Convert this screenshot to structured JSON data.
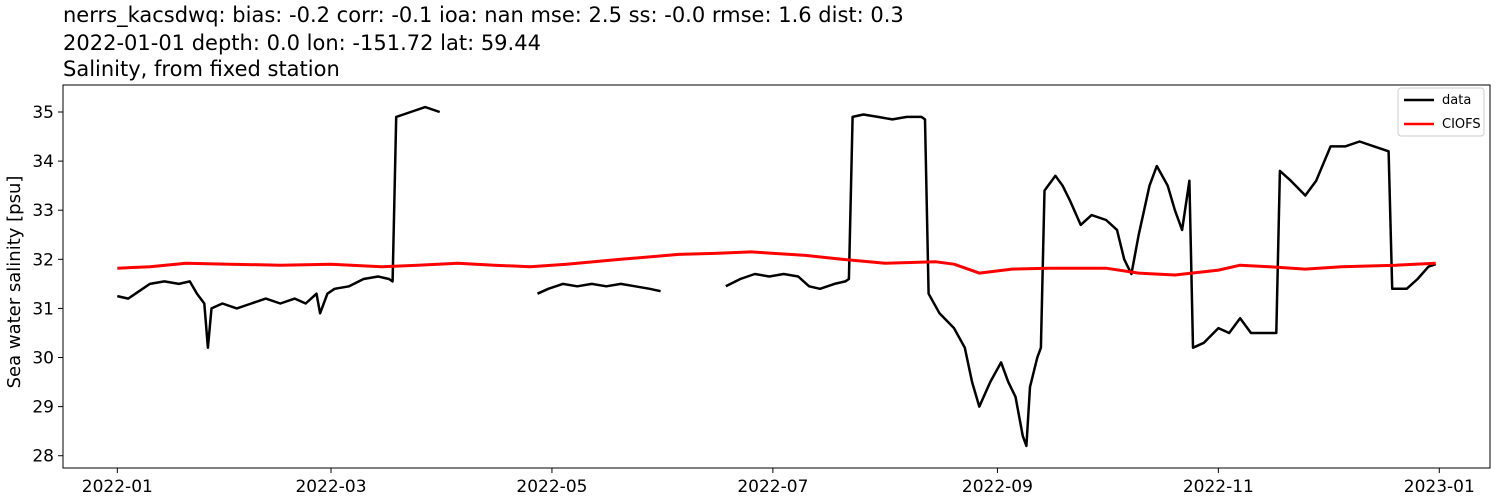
{
  "chart_data": {
    "type": "line",
    "title_lines": [
      "nerrs_kacsdwq: bias: -0.2  corr: -0.1  ioa: nan  mse: 2.5  ss: -0.0  rmse: 1.6  dist: 0.3",
      "2022-01-01 depth: 0.0 lon: -151.72 lat: 59.44",
      "Salinity, from fixed station"
    ],
    "xlabel": "",
    "ylabel": "Sea water salinity [psu]",
    "xlim": [
      "2021-12-17",
      "2023-01-15"
    ],
    "ylim": [
      27.75,
      35.55
    ],
    "x_ticks": [
      "2022-01",
      "2022-03",
      "2022-05",
      "2022-07",
      "2022-09",
      "2022-11",
      "2023-01"
    ],
    "y_ticks": [
      28,
      29,
      30,
      31,
      32,
      33,
      34,
      35
    ],
    "grid": false,
    "legend_position": "top-right",
    "series": [
      {
        "name": "data",
        "color": "#000000",
        "segments": [
          [
            [
              "2022-01-01",
              31.25
            ],
            [
              "2022-01-04",
              31.2
            ],
            [
              "2022-01-07",
              31.35
            ],
            [
              "2022-01-10",
              31.5
            ],
            [
              "2022-01-14",
              31.55
            ],
            [
              "2022-01-18",
              31.5
            ],
            [
              "2022-01-21",
              31.55
            ],
            [
              "2022-01-23",
              31.3
            ],
            [
              "2022-01-25",
              31.1
            ],
            [
              "2022-01-26",
              30.2
            ],
            [
              "2022-01-27",
              31.0
            ],
            [
              "2022-01-30",
              31.1
            ],
            [
              "2022-02-03",
              31.0
            ],
            [
              "2022-02-07",
              31.1
            ],
            [
              "2022-02-11",
              31.2
            ],
            [
              "2022-02-15",
              31.1
            ],
            [
              "2022-02-19",
              31.2
            ],
            [
              "2022-02-22",
              31.1
            ],
            [
              "2022-02-25",
              31.3
            ],
            [
              "2022-02-26",
              30.9
            ],
            [
              "2022-02-28",
              31.3
            ],
            [
              "2022-03-02",
              31.4
            ],
            [
              "2022-03-06",
              31.45
            ],
            [
              "2022-03-10",
              31.6
            ],
            [
              "2022-03-14",
              31.65
            ],
            [
              "2022-03-17",
              31.6
            ],
            [
              "2022-03-18",
              31.55
            ],
            [
              "2022-03-19",
              34.9
            ],
            [
              "2022-03-23",
              35.0
            ],
            [
              "2022-03-27",
              35.1
            ],
            [
              "2022-03-31",
              35.0
            ]
          ],
          [
            [
              "2022-04-27",
              31.3
            ],
            [
              "2022-04-30",
              31.4
            ],
            [
              "2022-05-04",
              31.5
            ],
            [
              "2022-05-08",
              31.45
            ],
            [
              "2022-05-12",
              31.5
            ],
            [
              "2022-05-16",
              31.45
            ],
            [
              "2022-05-20",
              31.5
            ],
            [
              "2022-05-24",
              31.45
            ],
            [
              "2022-05-28",
              31.4
            ],
            [
              "2022-05-31",
              31.35
            ]
          ],
          [
            [
              "2022-06-18",
              31.45
            ],
            [
              "2022-06-22",
              31.6
            ],
            [
              "2022-06-26",
              31.7
            ],
            [
              "2022-06-30",
              31.65
            ],
            [
              "2022-07-04",
              31.7
            ],
            [
              "2022-07-08",
              31.65
            ],
            [
              "2022-07-11",
              31.45
            ],
            [
              "2022-07-14",
              31.4
            ],
            [
              "2022-07-18",
              31.5
            ],
            [
              "2022-07-21",
              31.55
            ],
            [
              "2022-07-22",
              31.6
            ],
            [
              "2022-07-23",
              34.9
            ],
            [
              "2022-07-26",
              34.95
            ],
            [
              "2022-07-30",
              34.9
            ],
            [
              "2022-08-03",
              34.85
            ],
            [
              "2022-08-07",
              34.9
            ],
            [
              "2022-08-11",
              34.9
            ],
            [
              "2022-08-12",
              34.85
            ],
            [
              "2022-08-13",
              31.3
            ],
            [
              "2022-08-16",
              30.9
            ],
            [
              "2022-08-20",
              30.6
            ],
            [
              "2022-08-23",
              30.2
            ],
            [
              "2022-08-25",
              29.5
            ],
            [
              "2022-08-27",
              29.0
            ],
            [
              "2022-08-30",
              29.5
            ],
            [
              "2022-09-02",
              29.9
            ],
            [
              "2022-09-04",
              29.5
            ],
            [
              "2022-09-06",
              29.2
            ],
            [
              "2022-09-08",
              28.4
            ],
            [
              "2022-09-09",
              28.2
            ],
            [
              "2022-09-10",
              29.4
            ],
            [
              "2022-09-12",
              30.0
            ],
            [
              "2022-09-13",
              30.2
            ],
            [
              "2022-09-14",
              33.4
            ],
            [
              "2022-09-17",
              33.7
            ],
            [
              "2022-09-19",
              33.5
            ],
            [
              "2022-09-21",
              33.2
            ],
            [
              "2022-09-24",
              32.7
            ],
            [
              "2022-09-27",
              32.9
            ],
            [
              "2022-10-01",
              32.8
            ],
            [
              "2022-10-04",
              32.6
            ],
            [
              "2022-10-06",
              32.0
            ],
            [
              "2022-10-08",
              31.7
            ],
            [
              "2022-10-10",
              32.5
            ],
            [
              "2022-10-13",
              33.5
            ],
            [
              "2022-10-15",
              33.9
            ],
            [
              "2022-10-18",
              33.5
            ],
            [
              "2022-10-20",
              33.0
            ],
            [
              "2022-10-22",
              32.6
            ],
            [
              "2022-10-24",
              33.6
            ],
            [
              "2022-10-25",
              30.2
            ],
            [
              "2022-10-28",
              30.3
            ],
            [
              "2022-11-01",
              30.6
            ],
            [
              "2022-11-04",
              30.5
            ],
            [
              "2022-11-07",
              30.8
            ],
            [
              "2022-11-10",
              30.5
            ],
            [
              "2022-11-14",
              30.5
            ],
            [
              "2022-11-17",
              30.5
            ],
            [
              "2022-11-18",
              33.8
            ],
            [
              "2022-11-21",
              33.6
            ],
            [
              "2022-11-25",
              33.3
            ],
            [
              "2022-11-28",
              33.6
            ],
            [
              "2022-12-02",
              34.3
            ],
            [
              "2022-12-06",
              34.3
            ],
            [
              "2022-12-10",
              34.4
            ],
            [
              "2022-12-14",
              34.3
            ],
            [
              "2022-12-18",
              34.2
            ],
            [
              "2022-12-19",
              31.4
            ],
            [
              "2022-12-23",
              31.4
            ],
            [
              "2022-12-26",
              31.6
            ],
            [
              "2022-12-29",
              31.85
            ],
            [
              "2022-12-31",
              31.9
            ]
          ]
        ]
      },
      {
        "name": "CIOFS",
        "color": "#ff0000",
        "segments": [
          [
            [
              "2022-01-01",
              31.82
            ],
            [
              "2022-01-10",
              31.85
            ],
            [
              "2022-01-20",
              31.92
            ],
            [
              "2022-02-01",
              31.9
            ],
            [
              "2022-02-15",
              31.88
            ],
            [
              "2022-03-01",
              31.9
            ],
            [
              "2022-03-15",
              31.85
            ],
            [
              "2022-03-25",
              31.88
            ],
            [
              "2022-04-05",
              31.92
            ],
            [
              "2022-04-15",
              31.88
            ],
            [
              "2022-04-25",
              31.85
            ],
            [
              "2022-05-05",
              31.9
            ],
            [
              "2022-05-20",
              32.0
            ],
            [
              "2022-06-05",
              32.1
            ],
            [
              "2022-06-15",
              32.12
            ],
            [
              "2022-06-25",
              32.15
            ],
            [
              "2022-07-10",
              32.08
            ],
            [
              "2022-07-20",
              32.0
            ],
            [
              "2022-08-01",
              31.92
            ],
            [
              "2022-08-15",
              31.95
            ],
            [
              "2022-08-20",
              31.9
            ],
            [
              "2022-08-27",
              31.72
            ],
            [
              "2022-09-05",
              31.8
            ],
            [
              "2022-09-15",
              31.82
            ],
            [
              "2022-10-01",
              31.82
            ],
            [
              "2022-10-10",
              31.72
            ],
            [
              "2022-10-20",
              31.68
            ],
            [
              "2022-11-01",
              31.78
            ],
            [
              "2022-11-07",
              31.88
            ],
            [
              "2022-11-15",
              31.85
            ],
            [
              "2022-11-25",
              31.8
            ],
            [
              "2022-12-05",
              31.85
            ],
            [
              "2022-12-20",
              31.88
            ],
            [
              "2022-12-31",
              31.92
            ]
          ]
        ]
      }
    ]
  }
}
